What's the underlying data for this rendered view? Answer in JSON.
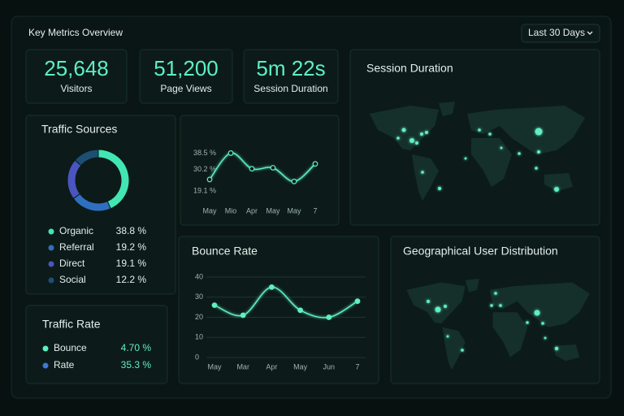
{
  "header": {
    "title": "Key Metrics Overview",
    "range": "Last 30 Days"
  },
  "kpis": [
    {
      "value": "25,648",
      "label": "Visitors"
    },
    {
      "value": "51,200",
      "label": "Page Views"
    },
    {
      "value": "5m 22s",
      "label": "Session Duration"
    }
  ],
  "session_map": {
    "title": "Session Duration"
  },
  "geo_map": {
    "title": "Geographical User Distribution"
  },
  "traffic_rate": {
    "title": "Traffic Rate",
    "rows": [
      {
        "label": "Bounce",
        "value": "4.70 %",
        "color": "#5ef0c0"
      },
      {
        "label": "Rate",
        "value": "35.3 %",
        "color": "#3a7bd5"
      }
    ]
  },
  "chart_data": [
    {
      "type": "pie",
      "title": "Traffic Sources",
      "categories": [
        "Organic",
        "Referral",
        "Direct",
        "Social"
      ],
      "values": [
        38.8,
        19.2,
        19.1,
        12.2
      ],
      "value_labels": [
        "38.8 %",
        "19.2 %",
        "19.1 %",
        "12.2 %"
      ],
      "colors": [
        "#42e6b5",
        "#2f6fc0",
        "#4a55c0",
        "#1d4f74"
      ]
    },
    {
      "type": "line",
      "categories": [
        "May",
        "Mio",
        "Apr",
        "May",
        "May",
        "7"
      ],
      "values": [
        25,
        38.5,
        30.5,
        31,
        24,
        33
      ],
      "ylim": [
        15,
        42
      ],
      "yticks": [
        {
          "value": 38.5,
          "label": "38.5 %"
        },
        {
          "value": 30.2,
          "label": "30.2 %"
        },
        {
          "value": 19.1,
          "label": "19.1 %"
        }
      ],
      "color": "#5ef0c0",
      "markers": "hollow"
    },
    {
      "type": "line",
      "title": "Bounce Rate",
      "categories": [
        "May",
        "Mar",
        "Apr",
        "May",
        "Jun",
        "7"
      ],
      "values": [
        26,
        21,
        35,
        23.5,
        20,
        28
      ],
      "ylim": [
        0,
        40
      ],
      "yticks": [
        0,
        10,
        20,
        30,
        40
      ],
      "color": "#5ef0c0",
      "grid": true,
      "markers": "filled"
    }
  ]
}
